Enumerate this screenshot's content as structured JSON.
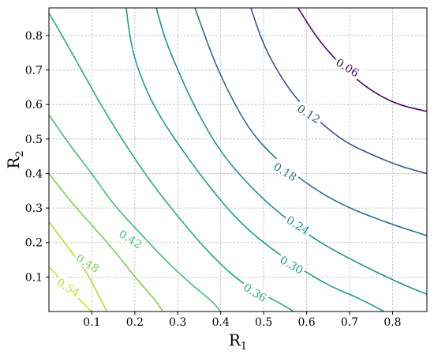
{
  "chart_data": {
    "type": "contour",
    "title": "",
    "xlabel": {
      "base": "R",
      "sub": "1"
    },
    "ylabel": {
      "base": "R",
      "sub": "2"
    },
    "xlim": [
      0.0,
      0.88
    ],
    "ylim": [
      0.0,
      0.88
    ],
    "xticks": [
      0.1,
      0.2,
      0.3,
      0.4,
      0.5,
      0.6,
      0.7,
      0.8
    ],
    "yticks": [
      0.1,
      0.2,
      0.3,
      0.4,
      0.5,
      0.6,
      0.7,
      0.8
    ],
    "xtick_labels": [
      "0.1",
      "0.2",
      "0.3",
      "0.4",
      "0.5",
      "0.6",
      "0.7",
      "0.8"
    ],
    "ytick_labels": [
      "0.1",
      "0.2",
      "0.3",
      "0.4",
      "0.5",
      "0.6",
      "0.7",
      "0.8"
    ],
    "grid": true,
    "colormap": "viridis",
    "levels": [
      {
        "value": 0.06,
        "label": "0.06",
        "color": "#46085c",
        "points": [
          [
            0.58,
            0.88
          ],
          [
            0.62,
            0.8
          ],
          [
            0.66,
            0.74
          ],
          [
            0.7,
            0.69
          ],
          [
            0.75,
            0.64
          ],
          [
            0.81,
            0.6
          ],
          [
            0.88,
            0.58
          ]
        ],
        "label_at": [
          0.695,
          0.707
        ],
        "label_angle": 32
      },
      {
        "value": 0.12,
        "label": "0.12",
        "color": "#3b518b",
        "points": [
          [
            0.47,
            0.88
          ],
          [
            0.5,
            0.77
          ],
          [
            0.54,
            0.68
          ],
          [
            0.58,
            0.61
          ],
          [
            0.63,
            0.55
          ],
          [
            0.69,
            0.49
          ],
          [
            0.76,
            0.45
          ],
          [
            0.82,
            0.42
          ],
          [
            0.88,
            0.4
          ]
        ],
        "label_at": [
          0.605,
          0.573
        ],
        "label_angle": 32
      },
      {
        "value": 0.18,
        "label": "0.18",
        "color": "#2d6f8e",
        "points": [
          [
            0.34,
            0.88
          ],
          [
            0.38,
            0.74
          ],
          [
            0.42,
            0.63
          ],
          [
            0.47,
            0.52
          ],
          [
            0.53,
            0.44
          ],
          [
            0.6,
            0.37
          ],
          [
            0.68,
            0.31
          ],
          [
            0.78,
            0.26
          ],
          [
            0.88,
            0.22
          ]
        ],
        "label_at": [
          0.55,
          0.405
        ],
        "label_angle": 32
      },
      {
        "value": 0.24,
        "label": "0.24",
        "color": "#21918c",
        "points": [
          [
            0.25,
            0.88
          ],
          [
            0.27,
            0.79
          ],
          [
            0.3,
            0.7
          ],
          [
            0.34,
            0.59
          ],
          [
            0.4,
            0.46
          ],
          [
            0.47,
            0.36
          ],
          [
            0.54,
            0.28
          ],
          [
            0.63,
            0.2
          ],
          [
            0.72,
            0.14
          ],
          [
            0.82,
            0.08
          ],
          [
            0.88,
            0.05
          ]
        ],
        "label_at": [
          0.58,
          0.25
        ],
        "label_angle": 32
      },
      {
        "value": 0.3,
        "label": "0.30",
        "color": "#1f9e89",
        "points": [
          [
            0.18,
            0.88
          ],
          [
            0.19,
            0.78
          ],
          [
            0.21,
            0.69
          ],
          [
            0.25,
            0.58
          ],
          [
            0.32,
            0.45
          ],
          [
            0.4,
            0.32
          ],
          [
            0.46,
            0.24
          ],
          [
            0.52,
            0.18
          ],
          [
            0.59,
            0.12
          ],
          [
            0.66,
            0.07
          ],
          [
            0.72,
            0.04
          ],
          [
            0.78,
            0.0
          ]
        ],
        "label_at": [
          0.565,
          0.135
        ],
        "label_angle": 30
      },
      {
        "value": 0.36,
        "label": "0.36",
        "color": "#27ad81",
        "points": [
          [
            0.0,
            0.865
          ],
          [
            0.04,
            0.78
          ],
          [
            0.08,
            0.69
          ],
          [
            0.13,
            0.58
          ],
          [
            0.18,
            0.48
          ],
          [
            0.24,
            0.37
          ],
          [
            0.31,
            0.26
          ],
          [
            0.38,
            0.16
          ],
          [
            0.45,
            0.08
          ],
          [
            0.53,
            0.03
          ],
          [
            0.57,
            0.0
          ]
        ],
        "label_at": [
          0.48,
          0.055
        ],
        "label_angle": 32
      },
      {
        "value": 0.42,
        "label": "0.42",
        "color": "#44bf70",
        "points": [
          [
            0.0,
            0.57
          ],
          [
            0.05,
            0.48
          ],
          [
            0.1,
            0.4
          ],
          [
            0.15,
            0.31
          ],
          [
            0.21,
            0.23
          ],
          [
            0.27,
            0.15
          ],
          [
            0.33,
            0.08
          ],
          [
            0.38,
            0.03
          ],
          [
            0.4,
            0.0
          ]
        ],
        "label_at": [
          0.19,
          0.21
        ],
        "label_angle": 32
      },
      {
        "value": 0.48,
        "label": "0.48",
        "color": "#7ad151",
        "points": [
          [
            0.0,
            0.4
          ],
          [
            0.05,
            0.32
          ],
          [
            0.1,
            0.25
          ],
          [
            0.15,
            0.18
          ],
          [
            0.2,
            0.1
          ],
          [
            0.25,
            0.03
          ],
          [
            0.265,
            0.0
          ]
        ],
        "label_at": [
          0.09,
          0.14
        ],
        "label_angle": 32
      },
      {
        "value": 0.54,
        "label": "0.54",
        "color": "#b5de2b",
        "points": [
          [
            0.0,
            0.26
          ],
          [
            0.03,
            0.21
          ],
          [
            0.06,
            0.16
          ],
          [
            0.09,
            0.11
          ],
          [
            0.11,
            0.06
          ],
          [
            0.135,
            0.0
          ]
        ],
        "label_at": [
          0.045,
          0.07
        ],
        "label_angle": 32
      },
      {
        "value": 0.6,
        "label": "",
        "color": "#d8e219",
        "points": [
          [
            0.0,
            0.13
          ],
          [
            0.03,
            0.09
          ],
          [
            0.06,
            0.05
          ],
          [
            0.09,
            0.01
          ],
          [
            0.1,
            0.0
          ]
        ],
        "label_at": null,
        "label_angle": 0
      }
    ]
  }
}
